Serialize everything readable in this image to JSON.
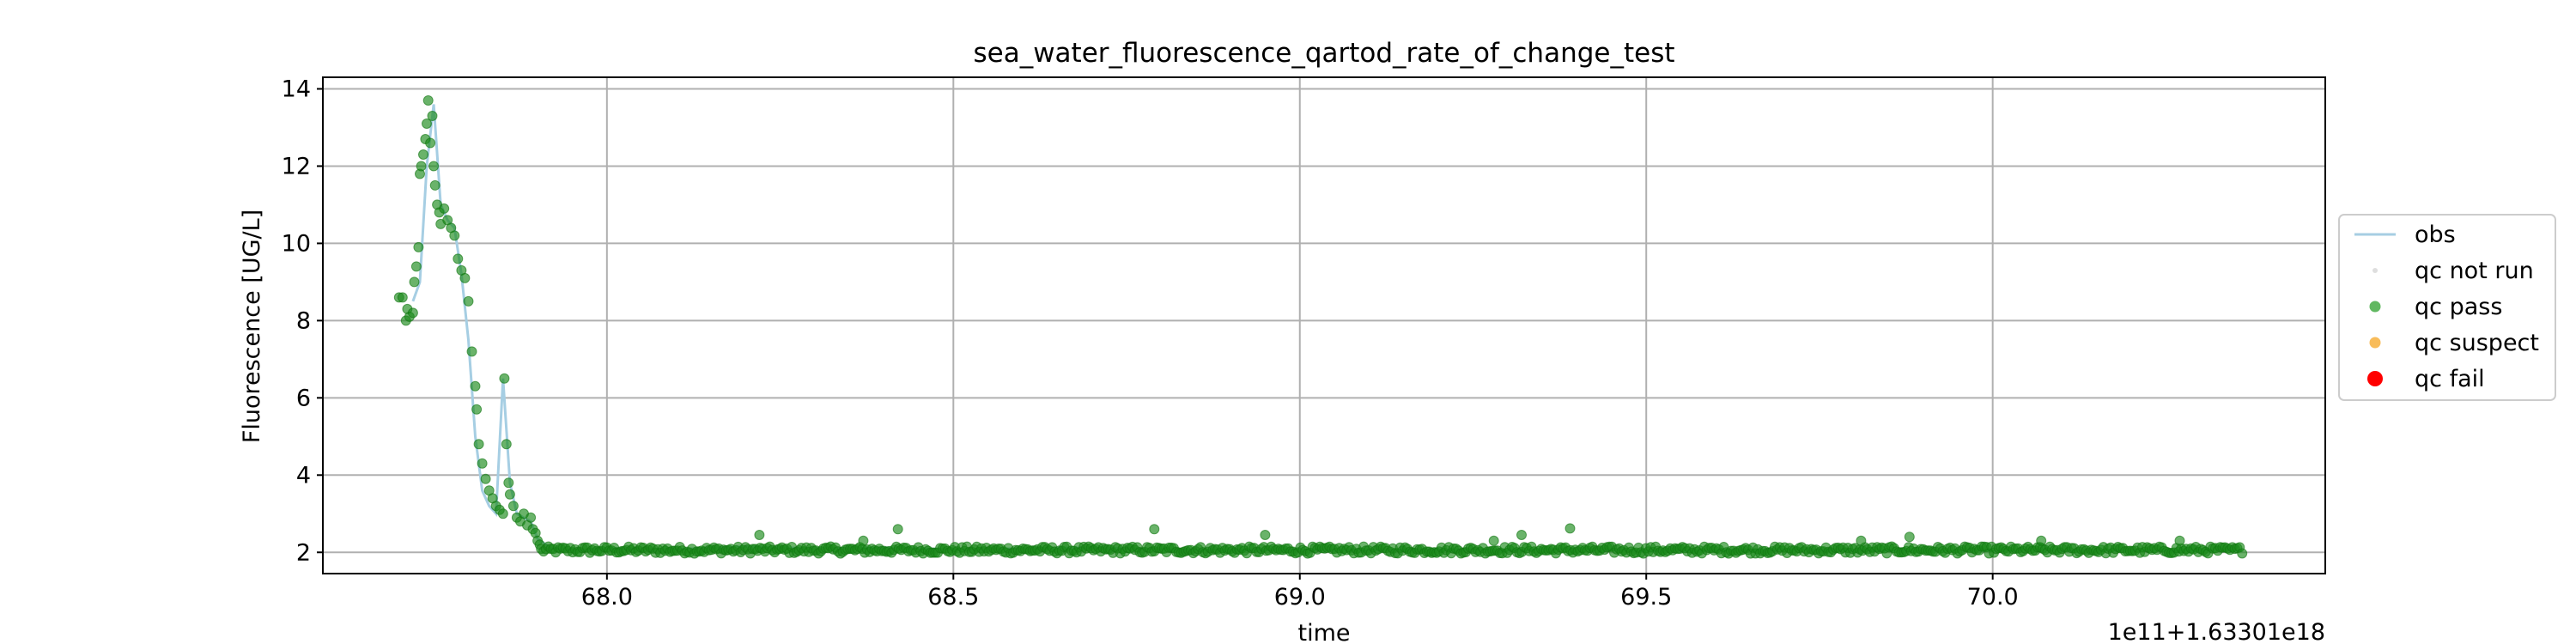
{
  "chart_data": {
    "type": "line",
    "title": "sea_water_fluorescence_qartod_rate_of_change_test",
    "xlabel": "time",
    "ylabel": "Fluorescence [UG/L]",
    "x_offset_text": "1e11+1.63301e18",
    "xlim": [
      67.59,
      70.48
    ],
    "ylim": [
      1.45,
      14.3
    ],
    "xticks": [
      68.0,
      68.5,
      69.0,
      69.5,
      70.0
    ],
    "xtick_labels": [
      "68.0",
      "68.5",
      "69.0",
      "69.5",
      "70.0"
    ],
    "yticks": [
      2,
      4,
      6,
      8,
      10,
      12,
      14
    ],
    "ytick_labels": [
      "2",
      "4",
      "6",
      "8",
      "10",
      "12",
      "14"
    ],
    "grid": true,
    "legend_position": "center-right outside",
    "legend": [
      {
        "label": "obs",
        "kind": "line",
        "color": "#a6cee3"
      },
      {
        "label": "qc not run",
        "kind": "dot-small",
        "color": "#d3d3d3"
      },
      {
        "label": "qc pass",
        "kind": "dot",
        "color": "#2ca02c"
      },
      {
        "label": "qc suspect",
        "kind": "dot",
        "color": "#f5a623"
      },
      {
        "label": "qc fail",
        "kind": "dot-large",
        "color": "#ff0000"
      }
    ],
    "series": [
      {
        "name": "obs",
        "role": "line",
        "x": [
          67.72,
          67.73,
          67.74,
          67.75,
          67.76,
          67.77,
          67.78,
          67.79,
          67.8,
          67.81,
          67.82,
          67.83,
          67.84,
          67.85,
          67.86,
          67.87,
          67.88,
          67.89,
          67.9,
          67.92,
          67.95,
          68.0,
          68.1,
          68.2,
          68.3,
          68.4,
          68.5,
          68.6,
          68.7,
          68.8,
          68.9,
          69.0,
          69.1,
          69.2,
          69.3,
          69.4,
          69.5,
          69.6,
          69.7,
          69.8,
          69.9,
          70.0,
          70.1,
          70.2,
          70.3,
          70.36
        ],
        "y": [
          8.5,
          9.0,
          12.0,
          13.6,
          11.0,
          10.6,
          10.4,
          9.2,
          7.5,
          5.0,
          3.6,
          3.2,
          3.0,
          6.5,
          3.8,
          3.0,
          2.9,
          2.8,
          2.35,
          2.1,
          2.05,
          2.1,
          2.08,
          2.15,
          2.1,
          2.12,
          2.08,
          2.1,
          2.12,
          2.08,
          2.05,
          2.07,
          2.05,
          2.08,
          2.05,
          2.1,
          2.03,
          2.05,
          2.08,
          2.05,
          2.03,
          2.05,
          2.04,
          2.06,
          2.04,
          2.05
        ],
        "color": "#a6cee3"
      },
      {
        "name": "qc pass",
        "role": "points",
        "color": "#2ca02c",
        "x": [
          67.7,
          67.705,
          67.71,
          67.712,
          67.715,
          67.72,
          67.722,
          67.725,
          67.728,
          67.73,
          67.732,
          67.735,
          67.738,
          67.74,
          67.742,
          67.745,
          67.748,
          67.75,
          67.752,
          67.755,
          67.758,
          67.76,
          67.765,
          67.77,
          67.775,
          67.78,
          67.785,
          67.79,
          67.795,
          67.8,
          67.805,
          67.81,
          67.812,
          67.815,
          67.82,
          67.825,
          67.83,
          67.835,
          67.84,
          67.845,
          67.85,
          67.852,
          67.855,
          67.858,
          67.86,
          67.865,
          67.87,
          67.875,
          67.88,
          67.885,
          67.89,
          67.893,
          67.897,
          67.9,
          67.903
        ],
        "y": [
          8.6,
          8.6,
          8.0,
          8.3,
          8.1,
          8.2,
          9.0,
          9.4,
          9.9,
          11.8,
          12.0,
          12.3,
          12.7,
          13.1,
          13.7,
          12.6,
          13.3,
          12.0,
          11.5,
          11.0,
          10.8,
          10.5,
          10.9,
          10.6,
          10.4,
          10.2,
          9.6,
          9.3,
          9.1,
          8.5,
          7.2,
          6.3,
          5.7,
          4.8,
          4.3,
          3.9,
          3.6,
          3.4,
          3.2,
          3.1,
          3.0,
          6.5,
          4.8,
          3.8,
          3.5,
          3.2,
          2.9,
          2.8,
          3.0,
          2.7,
          2.9,
          2.6,
          2.5,
          2.3,
          2.2
        ],
        "baseline_x_start": 67.905,
        "baseline_x_end": 70.36,
        "baseline_mean": 2.06,
        "baseline_spread": 0.09,
        "baseline_spikes": [
          {
            "x": 68.22,
            "y": 2.45
          },
          {
            "x": 68.37,
            "y": 2.3
          },
          {
            "x": 68.42,
            "y": 2.6
          },
          {
            "x": 68.79,
            "y": 2.6
          },
          {
            "x": 68.95,
            "y": 2.45
          },
          {
            "x": 69.28,
            "y": 2.3
          },
          {
            "x": 69.32,
            "y": 2.45
          },
          {
            "x": 69.39,
            "y": 2.62
          },
          {
            "x": 69.81,
            "y": 2.3
          },
          {
            "x": 69.88,
            "y": 2.4
          },
          {
            "x": 70.07,
            "y": 2.3
          },
          {
            "x": 70.27,
            "y": 2.3
          }
        ]
      }
    ]
  }
}
